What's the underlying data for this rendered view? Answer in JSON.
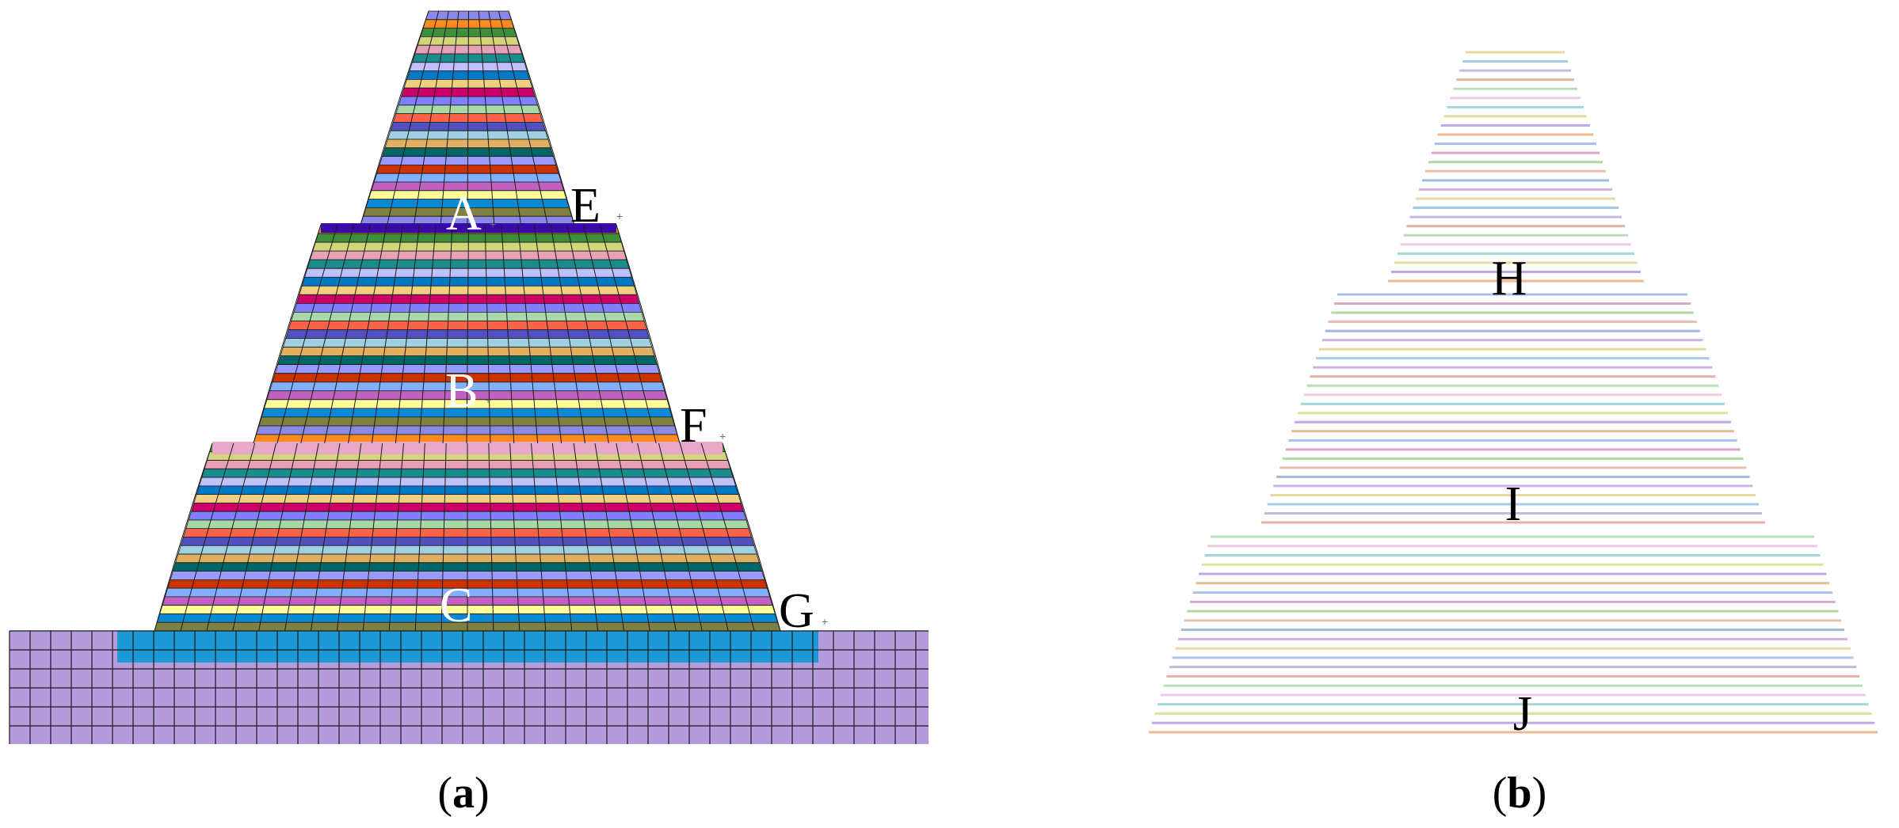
{
  "panels": [
    {
      "id": "a",
      "caption_open": "(",
      "caption_letter": "a",
      "caption_close": ")"
    },
    {
      "id": "b",
      "caption_open": "(",
      "caption_letter": "b",
      "caption_close": ")"
    }
  ],
  "labels": {
    "A": "A",
    "B": "B",
    "C": "C",
    "E": "E",
    "F": "F",
    "G": "G",
    "H": "H",
    "I": "I",
    "J": "J",
    "marker": "+"
  },
  "colors": {
    "foundation": "#b59bdc",
    "foundation_cap": "#1c9ad6",
    "mesh_line": "#1a1a1a",
    "layer_palette_a": [
      "#8a8ae6",
      "#ff8c1a",
      "#3d8f3d",
      "#d4d47a",
      "#e8a0b4",
      "#1a8c8c",
      "#c0c0ff",
      "#0078c8",
      "#f0d080",
      "#cc0066",
      "#7f7fff",
      "#a8d8a8",
      "#ff6347",
      "#5050c0",
      "#a0d0e0",
      "#e0b060",
      "#006666",
      "#9999ff",
      "#cc3300",
      "#80b0ff",
      "#c060c0",
      "#ffff99",
      "#0a8ad6",
      "#808040"
    ],
    "layer_palette_b": [
      "#e8d8a0",
      "#a8c8e8",
      "#c8b8e0",
      "#e8b0a8",
      "#b8e0b8",
      "#f0c8e0",
      "#a0d8d8",
      "#e0e0a0",
      "#c0a8e8",
      "#f0b890",
      "#a8c0f0",
      "#d8a8c8",
      "#b0d8a0",
      "#e8c0b0",
      "#a0b8d8",
      "#d0b0e8"
    ]
  }
}
